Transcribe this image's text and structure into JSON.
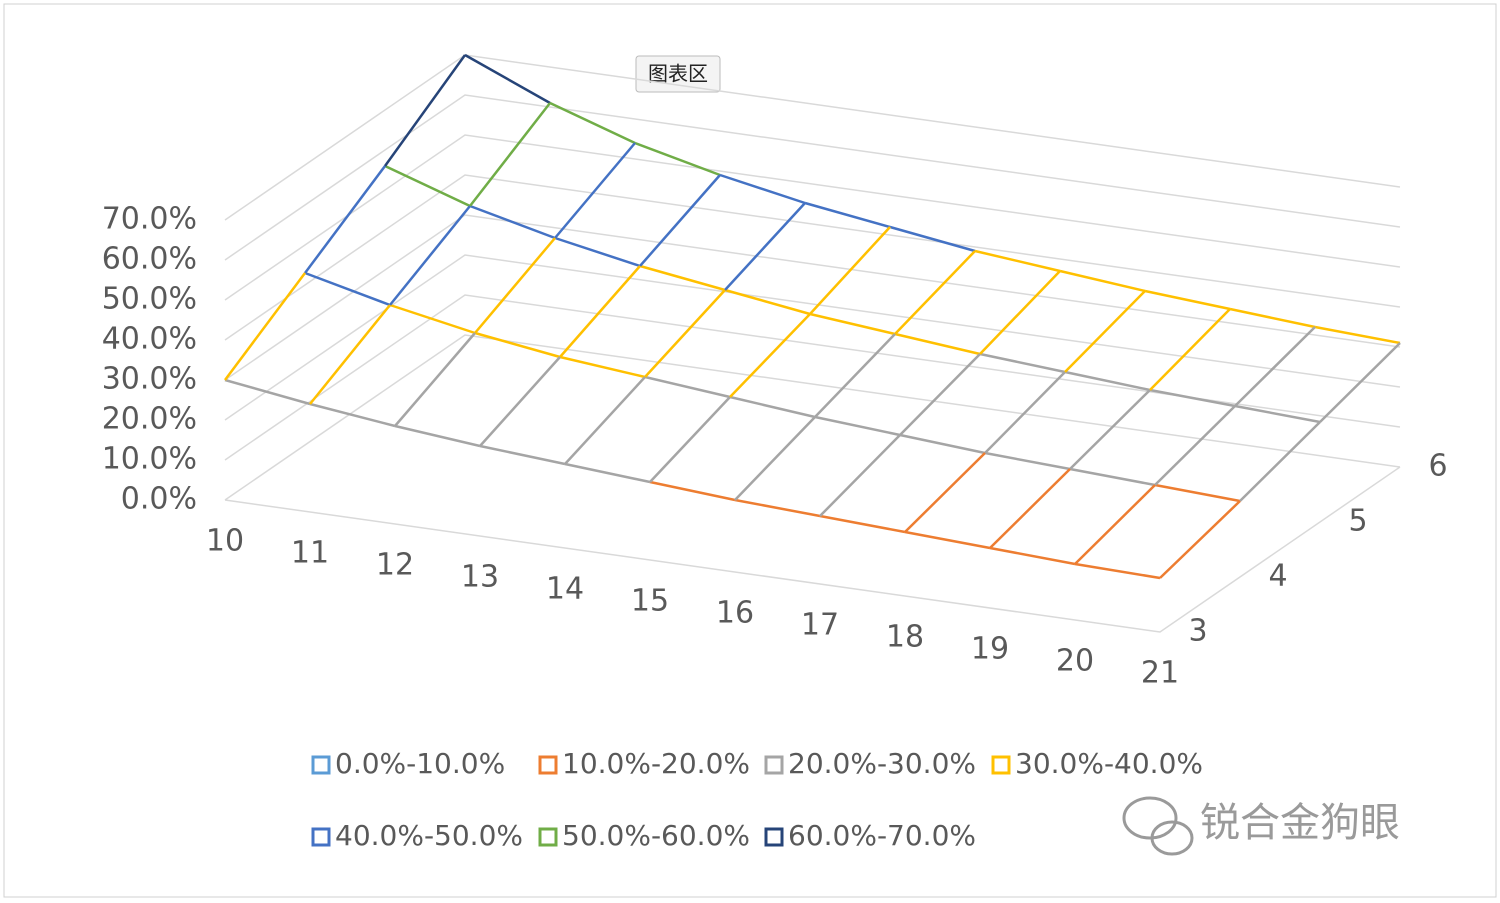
{
  "chart_data": {
    "type": "surface",
    "categories": [
      "10",
      "11",
      "12",
      "13",
      "14",
      "15",
      "16",
      "17",
      "18",
      "19",
      "20",
      "21"
    ],
    "series": [
      {
        "name": "3",
        "values": [
          30,
          27,
          24.5,
          22.5,
          21,
          19.5,
          18,
          17,
          16,
          15,
          14,
          13.5
        ]
      },
      {
        "name": "4",
        "values": [
          43,
          38,
          34,
          31,
          29,
          27,
          25,
          23.5,
          22,
          21,
          20,
          19
        ]
      },
      {
        "name": "5",
        "values": [
          56,
          49,
          44,
          40,
          37,
          34,
          32,
          30,
          28.5,
          27,
          26,
          25
        ]
      },
      {
        "name": "6",
        "values": [
          70,
          61,
          54,
          49,
          45,
          42,
          39,
          37,
          35,
          33.5,
          32,
          31
        ]
      }
    ],
    "zlim": [
      0,
      70
    ],
    "zticks": [
      {
        "value": 0,
        "label": "0.0%"
      },
      {
        "value": 10,
        "label": "10.0%"
      },
      {
        "value": 20,
        "label": "20.0%"
      },
      {
        "value": 30,
        "label": "30.0%"
      },
      {
        "value": 40,
        "label": "40.0%"
      },
      {
        "value": 50,
        "label": "50.0%"
      },
      {
        "value": 60,
        "label": "60.0%"
      },
      {
        "value": 70,
        "label": "70.0%"
      }
    ],
    "legend": [
      {
        "name": "0.0%-10.0%",
        "color": "#5b9bd5"
      },
      {
        "name": "10.0%-20.0%",
        "color": "#ed7d31"
      },
      {
        "name": "20.0%-30.0%",
        "color": "#a5a5a5"
      },
      {
        "name": "30.0%-40.0%",
        "color": "#ffc000"
      },
      {
        "name": "40.0%-50.0%",
        "color": "#4472c4"
      },
      {
        "name": "50.0%-60.0%",
        "color": "#70ad47"
      },
      {
        "name": "60.0%-70.0%",
        "color": "#264478"
      }
    ],
    "tooltip": "图表区",
    "watermark": "锐合金狗眼"
  }
}
